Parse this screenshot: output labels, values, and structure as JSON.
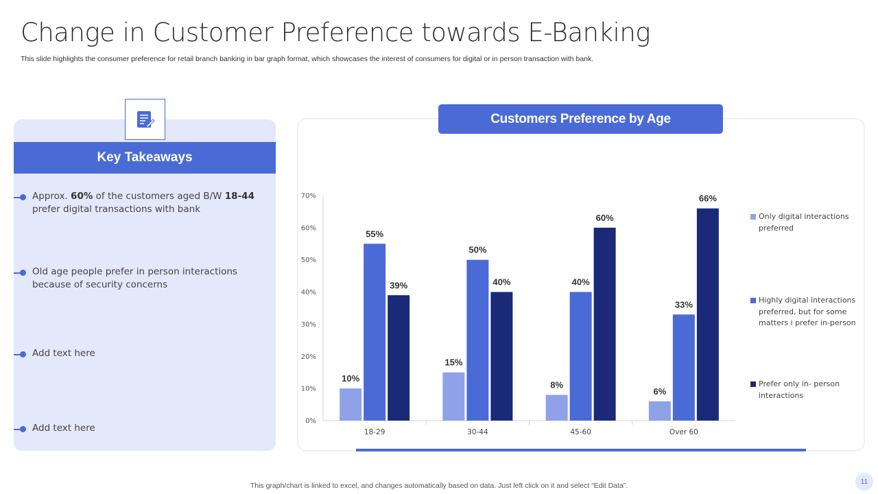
{
  "slide": {
    "title": "Change in Customer Preference towards E-Banking",
    "subtitle": "This slide highlights the consumer preference for retail branch banking in bar graph format, which showcases the interest of consumers for digital or in person transaction with bank.",
    "footer_note": "This graph/chart is linked to excel, and changes automatically based on data. Just left click on it and select “Edit Data”.",
    "page_number": "11"
  },
  "left_panel": {
    "icon": "document-edit-icon",
    "heading": "Key Takeaways",
    "bullets": [
      {
        "pre": "Approx. ",
        "b1": "60%",
        "mid": " of the customers aged B/W ",
        "b2": "18-44",
        "post": " prefer digital transactions with bank"
      },
      {
        "text": "Old age people prefer in person interactions because of security concerns"
      },
      {
        "text": "Add text here"
      },
      {
        "text": "Add text here"
      }
    ]
  },
  "colors": {
    "accent": "#4a6ad6",
    "panel_bg": "#e4e8fb",
    "series_light": "#8fa2e8",
    "series_mid": "#4a6ad6",
    "series_dark": "#1a2a78"
  },
  "chart_data": {
    "type": "bar",
    "title": "Customers Preference by Age",
    "categories": [
      "18-29",
      "30-44",
      "45-60",
      "Over 60"
    ],
    "series": [
      {
        "name": "Only digital interactions preferred",
        "values": [
          10,
          15,
          8,
          6
        ],
        "labels": [
          "10%",
          "15%",
          "8%",
          "6%"
        ],
        "color": "#8fa2e8"
      },
      {
        "name": "Highly digital interactions preferred, but for some matters i prefer in-person",
        "values": [
          55,
          50,
          40,
          33
        ],
        "labels": [
          "55%",
          "50%",
          "40%",
          "33%"
        ],
        "color": "#4a6ad6"
      },
      {
        "name": "Prefer only in- person interactions",
        "values": [
          39,
          40,
          60,
          66
        ],
        "labels": [
          "39%",
          "40%",
          "60%",
          "66%"
        ],
        "color": "#1a2a78"
      }
    ],
    "ylim": [
      0,
      70
    ],
    "yticks": [
      "0%",
      "10%",
      "20%",
      "30%",
      "40%",
      "50%",
      "60%",
      "70%"
    ],
    "xlabel": "",
    "ylabel": "",
    "grid": false,
    "legend": "right"
  }
}
